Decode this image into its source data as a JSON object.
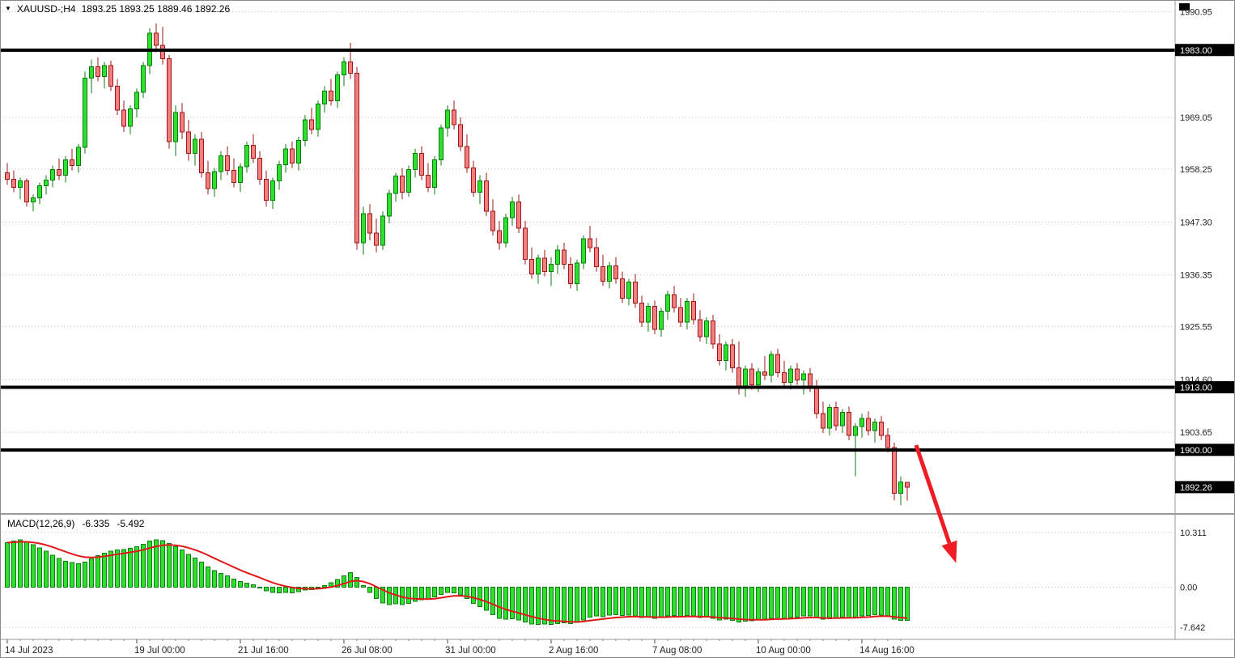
{
  "header": {
    "symbol_period": "XAUUSD-;H4",
    "ohlc": "1893.25 1893.25 1889.46 1892.26"
  },
  "colors": {
    "background": "#ffffff",
    "bull_fill": "#2ee02e",
    "bull_stroke": "#0c7c0c",
    "bear_fill": "#f08080",
    "bear_stroke": "#a01515",
    "sr_line": "#000000",
    "tag_bg": "#000000",
    "tag_text": "#ffffff",
    "grid": "#bdbdbd",
    "axis_text": "#1f1f1f",
    "macd_bar_fill": "#2ee02e",
    "macd_bar_stroke": "#0c7c0c",
    "macd_signal": "#e01818",
    "arrow": "#ee1c25",
    "separator": "#9a9a9a"
  },
  "chart_data": {
    "type": "candlestick",
    "symbol": "XAUUSD-",
    "timeframe": "H4",
    "y_axis": {
      "ticks": [
        "1990.95",
        "1969.05",
        "1958.25",
        "1947.30",
        "1936.35",
        "1925.55",
        "1914.60",
        "1903.65"
      ],
      "range": [
        1887.2,
        1992.2
      ]
    },
    "horizontal_lines": [
      {
        "price": 1983.0,
        "label": "1983.00"
      },
      {
        "price": 1913.0,
        "label": "1913.00"
      },
      {
        "price": 1900.0,
        "label": "1900.00"
      }
    ],
    "current_price": {
      "price": 1892.26,
      "label": "1892.26"
    },
    "x_axis": {
      "labels": [
        {
          "index": 0,
          "text": "14 Jul 2023"
        },
        {
          "index": 20,
          "text": "19 Jul 00:00"
        },
        {
          "index": 36,
          "text": "21 Jul 16:00"
        },
        {
          "index": 52,
          "text": "26 Jul 08:00"
        },
        {
          "index": 68,
          "text": "31 Jul 00:00"
        },
        {
          "index": 84,
          "text": "2 Aug 16:00"
        },
        {
          "index": 100,
          "text": "7 Aug 08:00"
        },
        {
          "index": 116,
          "text": "10 Aug 00:00"
        },
        {
          "index": 132,
          "text": "14 Aug 16:00"
        }
      ]
    },
    "candles": [
      [
        1957.5,
        1959.5,
        1955.0,
        1956.2
      ],
      [
        1956.2,
        1958.0,
        1953.5,
        1954.5
      ],
      [
        1954.5,
        1956.5,
        1952.0,
        1955.8
      ],
      [
        1955.8,
        1956.3,
        1950.5,
        1951.5
      ],
      [
        1951.5,
        1953.0,
        1949.5,
        1952.3
      ],
      [
        1952.3,
        1955.5,
        1951.0,
        1954.8
      ],
      [
        1954.8,
        1957.0,
        1953.0,
        1956.0
      ],
      [
        1956.0,
        1959.0,
        1954.5,
        1958.2
      ],
      [
        1958.2,
        1960.5,
        1956.0,
        1957.0
      ],
      [
        1957.0,
        1961.0,
        1955.5,
        1960.2
      ],
      [
        1960.2,
        1962.5,
        1958.0,
        1959.0
      ],
      [
        1959.0,
        1963.5,
        1957.5,
        1962.8
      ],
      [
        1962.8,
        1978.5,
        1961.5,
        1977.2
      ],
      [
        1977.2,
        1981.0,
        1974.0,
        1979.5
      ],
      [
        1979.5,
        1981.5,
        1976.5,
        1977.5
      ],
      [
        1977.5,
        1980.5,
        1975.0,
        1979.8
      ],
      [
        1979.8,
        1980.8,
        1974.5,
        1975.5
      ],
      [
        1975.5,
        1977.0,
        1969.5,
        1970.5
      ],
      [
        1970.5,
        1972.5,
        1966.0,
        1967.2
      ],
      [
        1967.2,
        1971.5,
        1965.5,
        1970.8
      ],
      [
        1970.8,
        1975.0,
        1969.0,
        1974.2
      ],
      [
        1974.2,
        1980.5,
        1973.0,
        1979.8
      ],
      [
        1979.8,
        1987.5,
        1978.0,
        1986.5
      ],
      [
        1986.5,
        1988.5,
        1982.5,
        1984.0
      ],
      [
        1984.0,
        1987.8,
        1980.0,
        1981.2
      ],
      [
        1981.2,
        1982.0,
        1962.5,
        1964.0
      ],
      [
        1964.0,
        1971.5,
        1961.0,
        1970.0
      ],
      [
        1970.0,
        1972.0,
        1964.5,
        1966.0
      ],
      [
        1966.0,
        1968.5,
        1960.0,
        1961.5
      ],
      [
        1961.5,
        1965.5,
        1959.0,
        1964.5
      ],
      [
        1964.5,
        1966.0,
        1956.5,
        1957.5
      ],
      [
        1957.5,
        1960.0,
        1953.0,
        1954.2
      ],
      [
        1954.2,
        1958.5,
        1952.5,
        1957.8
      ],
      [
        1957.8,
        1962.0,
        1956.0,
        1961.0
      ],
      [
        1961.0,
        1963.0,
        1957.0,
        1958.0
      ],
      [
        1958.0,
        1960.5,
        1954.5,
        1955.5
      ],
      [
        1955.5,
        1959.5,
        1953.5,
        1958.8
      ],
      [
        1958.8,
        1964.0,
        1957.5,
        1963.2
      ],
      [
        1963.2,
        1965.5,
        1959.5,
        1960.5
      ],
      [
        1960.5,
        1962.0,
        1955.0,
        1956.2
      ],
      [
        1956.2,
        1958.0,
        1950.5,
        1951.8
      ],
      [
        1951.8,
        1956.5,
        1950.0,
        1955.8
      ],
      [
        1955.8,
        1960.0,
        1954.0,
        1959.2
      ],
      [
        1959.2,
        1963.5,
        1957.5,
        1962.5
      ],
      [
        1962.5,
        1964.0,
        1958.5,
        1959.5
      ],
      [
        1959.5,
        1965.0,
        1958.0,
        1964.2
      ],
      [
        1964.2,
        1969.5,
        1963.0,
        1968.5
      ],
      [
        1968.5,
        1971.0,
        1965.5,
        1966.5
      ],
      [
        1966.5,
        1972.5,
        1965.0,
        1971.8
      ],
      [
        1971.8,
        1975.5,
        1970.0,
        1974.5
      ],
      [
        1974.5,
        1977.0,
        1971.5,
        1972.5
      ],
      [
        1972.5,
        1978.5,
        1971.0,
        1977.8
      ],
      [
        1977.8,
        1981.5,
        1975.5,
        1980.5
      ],
      [
        1980.5,
        1984.5,
        1977.0,
        1978.2
      ],
      [
        1978.2,
        1979.5,
        1941.5,
        1943.0
      ],
      [
        1943.0,
        1950.5,
        1940.5,
        1949.0
      ],
      [
        1949.0,
        1951.0,
        1943.5,
        1945.0
      ],
      [
        1945.0,
        1948.0,
        1941.0,
        1942.5
      ],
      [
        1942.5,
        1949.5,
        1941.5,
        1948.5
      ],
      [
        1948.5,
        1954.0,
        1947.0,
        1953.2
      ],
      [
        1953.2,
        1957.5,
        1951.5,
        1956.8
      ],
      [
        1956.8,
        1958.5,
        1952.0,
        1953.5
      ],
      [
        1953.5,
        1959.0,
        1952.5,
        1958.2
      ],
      [
        1958.2,
        1962.5,
        1956.5,
        1961.5
      ],
      [
        1961.5,
        1963.0,
        1956.0,
        1957.0
      ],
      [
        1957.0,
        1959.5,
        1953.5,
        1954.5
      ],
      [
        1954.5,
        1961.0,
        1953.0,
        1960.2
      ],
      [
        1960.2,
        1967.5,
        1959.0,
        1966.8
      ],
      [
        1966.8,
        1971.5,
        1965.0,
        1970.5
      ],
      [
        1970.5,
        1972.5,
        1966.5,
        1967.5
      ],
      [
        1967.5,
        1969.0,
        1962.0,
        1963.0
      ],
      [
        1963.0,
        1965.5,
        1957.5,
        1958.5
      ],
      [
        1958.5,
        1960.0,
        1952.5,
        1953.5
      ],
      [
        1953.5,
        1957.0,
        1951.0,
        1955.8
      ],
      [
        1955.8,
        1957.5,
        1948.5,
        1949.5
      ],
      [
        1949.5,
        1952.0,
        1944.5,
        1945.5
      ],
      [
        1945.5,
        1947.5,
        1941.5,
        1943.0
      ],
      [
        1943.0,
        1949.0,
        1942.0,
        1948.2
      ],
      [
        1948.2,
        1952.5,
        1946.5,
        1951.5
      ],
      [
        1951.5,
        1953.0,
        1945.0,
        1946.0
      ],
      [
        1946.0,
        1947.5,
        1938.5,
        1939.5
      ],
      [
        1939.5,
        1942.0,
        1935.5,
        1936.5
      ],
      [
        1936.5,
        1940.5,
        1934.5,
        1939.8
      ],
      [
        1939.8,
        1941.5,
        1936.0,
        1937.0
      ],
      [
        1937.0,
        1940.0,
        1934.0,
        1938.5
      ],
      [
        1938.5,
        1942.5,
        1936.5,
        1941.5
      ],
      [
        1941.5,
        1943.0,
        1937.5,
        1938.5
      ],
      [
        1938.5,
        1940.0,
        1933.5,
        1934.5
      ],
      [
        1934.5,
        1939.5,
        1933.0,
        1938.8
      ],
      [
        1938.8,
        1944.5,
        1937.5,
        1943.8
      ],
      [
        1943.8,
        1946.5,
        1941.0,
        1942.0
      ],
      [
        1942.0,
        1944.0,
        1937.0,
        1938.0
      ],
      [
        1938.0,
        1940.5,
        1934.0,
        1935.0
      ],
      [
        1935.0,
        1939.0,
        1933.5,
        1938.2
      ],
      [
        1938.2,
        1940.0,
        1934.5,
        1935.5
      ],
      [
        1935.5,
        1937.0,
        1930.5,
        1931.5
      ],
      [
        1931.5,
        1935.5,
        1930.0,
        1934.8
      ],
      [
        1934.8,
        1936.5,
        1929.5,
        1930.5
      ],
      [
        1930.5,
        1932.0,
        1925.5,
        1926.5
      ],
      [
        1926.5,
        1930.5,
        1924.5,
        1929.8
      ],
      [
        1929.8,
        1931.0,
        1924.0,
        1925.0
      ],
      [
        1925.0,
        1929.5,
        1923.5,
        1928.8
      ],
      [
        1928.8,
        1933.0,
        1927.0,
        1932.2
      ],
      [
        1932.2,
        1934.0,
        1928.5,
        1929.5
      ],
      [
        1929.5,
        1931.5,
        1925.5,
        1926.5
      ],
      [
        1926.5,
        1931.5,
        1925.0,
        1930.8
      ],
      [
        1930.8,
        1932.5,
        1926.0,
        1927.0
      ],
      [
        1927.0,
        1929.0,
        1922.5,
        1923.5
      ],
      [
        1923.5,
        1927.5,
        1922.0,
        1926.8
      ],
      [
        1926.8,
        1928.0,
        1921.0,
        1922.0
      ],
      [
        1922.0,
        1924.0,
        1917.5,
        1918.5
      ],
      [
        1918.5,
        1922.5,
        1916.5,
        1921.8
      ],
      [
        1921.8,
        1923.0,
        1916.0,
        1917.0
      ],
      [
        1917.0,
        1922.5,
        1911.5,
        1913.0
      ],
      [
        1913.0,
        1917.5,
        1911.0,
        1916.8
      ],
      [
        1916.8,
        1918.0,
        1912.5,
        1913.5
      ],
      [
        1913.5,
        1917.0,
        1912.0,
        1916.2
      ],
      [
        1916.2,
        1919.5,
        1914.5,
        1915.5
      ],
      [
        1915.5,
        1920.5,
        1914.0,
        1919.8
      ],
      [
        1919.8,
        1921.0,
        1915.0,
        1916.0
      ],
      [
        1916.0,
        1918.5,
        1913.0,
        1914.0
      ],
      [
        1914.0,
        1917.5,
        1912.5,
        1916.8
      ],
      [
        1916.8,
        1918.0,
        1913.5,
        1914.5
      ],
      [
        1914.5,
        1916.5,
        1911.5,
        1915.8
      ],
      [
        1915.8,
        1917.0,
        1912.0,
        1913.0
      ],
      [
        1913.0,
        1914.5,
        1906.5,
        1907.5
      ],
      [
        1907.5,
        1910.0,
        1903.5,
        1904.5
      ],
      [
        1904.5,
        1909.5,
        1903.0,
        1908.8
      ],
      [
        1908.8,
        1910.0,
        1904.0,
        1905.0
      ],
      [
        1905.0,
        1908.5,
        1903.5,
        1907.8
      ],
      [
        1907.8,
        1909.0,
        1902.0,
        1903.0
      ],
      [
        1903.0,
        1905.5,
        1894.5,
        1904.8
      ],
      [
        1904.8,
        1907.5,
        1902.5,
        1906.5
      ],
      [
        1906.5,
        1908.0,
        1903.0,
        1904.0
      ],
      [
        1904.0,
        1906.5,
        1901.5,
        1905.8
      ],
      [
        1905.8,
        1907.0,
        1902.0,
        1903.0
      ],
      [
        1903.0,
        1904.5,
        1899.5,
        1900.5
      ],
      [
        1900.5,
        1901.5,
        1889.5,
        1891.0
      ],
      [
        1891.0,
        1894.5,
        1888.5,
        1893.3
      ],
      [
        1893.25,
        1893.25,
        1889.46,
        1892.26
      ]
    ],
    "macd": {
      "label": "MACD(12,26,9)",
      "macd_value": "-6.335",
      "signal_value": "-5.492",
      "y_ticks": [
        "10.311",
        "0.00",
        "-7.642"
      ],
      "range": [
        -9.6,
        12.9
      ],
      "signal_period": 9,
      "histogram": [
        8.4,
        8.7,
        8.9,
        8.5,
        8.0,
        7.4,
        6.8,
        6.0,
        5.4,
        4.9,
        4.6,
        4.4,
        4.7,
        5.3,
        5.9,
        6.4,
        6.8,
        7.0,
        7.1,
        7.3,
        7.6,
        8.1,
        8.7,
        8.9,
        8.8,
        8.2,
        7.6,
        7.0,
        6.2,
        5.5,
        4.7,
        3.8,
        3.1,
        2.6,
        2.1,
        1.5,
        1.0,
        0.7,
        0.4,
        -0.1,
        -0.7,
        -1.0,
        -1.1,
        -1.0,
        -1.1,
        -0.9,
        -0.6,
        -0.5,
        -0.2,
        0.3,
        0.8,
        1.4,
        2.1,
        2.7,
        1.8,
        0.3,
        -1.0,
        -2.2,
        -3.0,
        -3.3,
        -3.2,
        -3.3,
        -3.1,
        -2.7,
        -2.4,
        -2.3,
        -1.9,
        -1.4,
        -1.0,
        -1.1,
        -1.5,
        -2.2,
        -3.1,
        -3.7,
        -4.4,
        -5.2,
        -5.9,
        -6.1,
        -6.0,
        -6.2,
        -6.6,
        -7.0,
        -7.1,
        -7.0,
        -7.1,
        -6.9,
        -6.8,
        -6.9,
        -6.7,
        -6.2,
        -5.7,
        -5.5,
        -5.6,
        -5.3,
        -5.2,
        -5.4,
        -5.3,
        -5.5,
        -5.8,
        -5.7,
        -5.9,
        -5.8,
        -5.5,
        -5.4,
        -5.6,
        -5.4,
        -5.5,
        -5.8,
        -5.7,
        -5.9,
        -6.2,
        -6.1,
        -6.3,
        -6.6,
        -6.5,
        -6.4,
        -6.2,
        -6.1,
        -5.9,
        -5.8,
        -5.9,
        -5.8,
        -5.7,
        -5.5,
        -5.5,
        -5.8,
        -6.1,
        -6.0,
        -5.9,
        -5.7,
        -5.8,
        -5.7,
        -5.5,
        -5.4,
        -5.2,
        -5.3,
        -5.5,
        -6.1,
        -6.3,
        -6.335
      ]
    },
    "annotation_arrow": {
      "description": "red arrow pointing down-right from the 1900 level",
      "color": "#ee1c25"
    }
  }
}
